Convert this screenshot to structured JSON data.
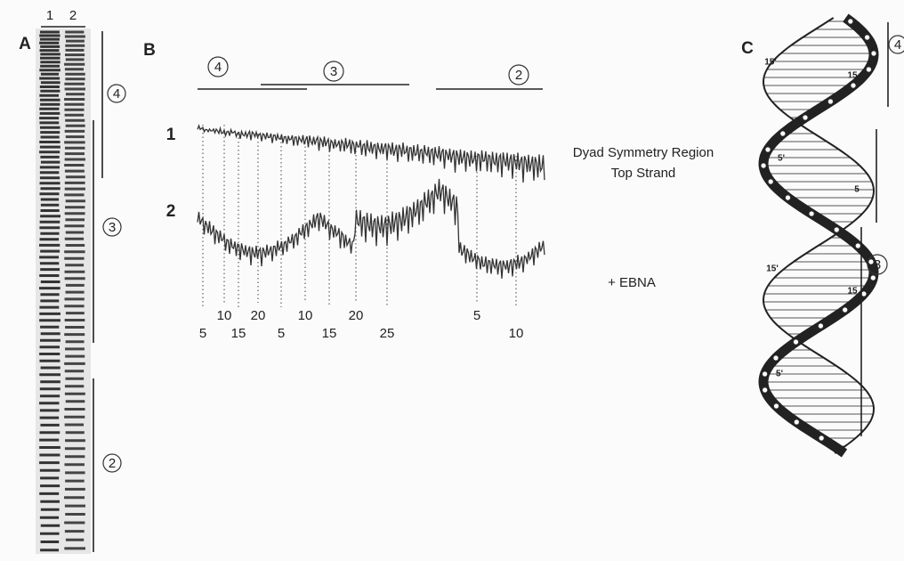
{
  "panels": {
    "a": {
      "label": "A",
      "lanes": [
        "1",
        "2"
      ],
      "regions": [
        "4",
        "3",
        "2"
      ]
    },
    "b": {
      "label": "B",
      "regions": [
        "4",
        "3",
        "2"
      ],
      "traces": [
        "1",
        "2"
      ],
      "upper_numbers": [
        "10",
        "20",
        "10",
        "20",
        "5"
      ],
      "lower_numbers": [
        "5",
        "15",
        "5",
        "15",
        "25",
        "10"
      ],
      "trace_1_caption": [
        "Dyad Symmetry Region",
        "Top Strand"
      ],
      "trace_2_caption": "+ EBNA"
    },
    "c": {
      "label": "C",
      "strand_labels": [
        "15'",
        "15",
        "5'",
        "5",
        "15'",
        "15",
        "5'"
      ],
      "regions": [
        "4",
        "3"
      ]
    }
  }
}
